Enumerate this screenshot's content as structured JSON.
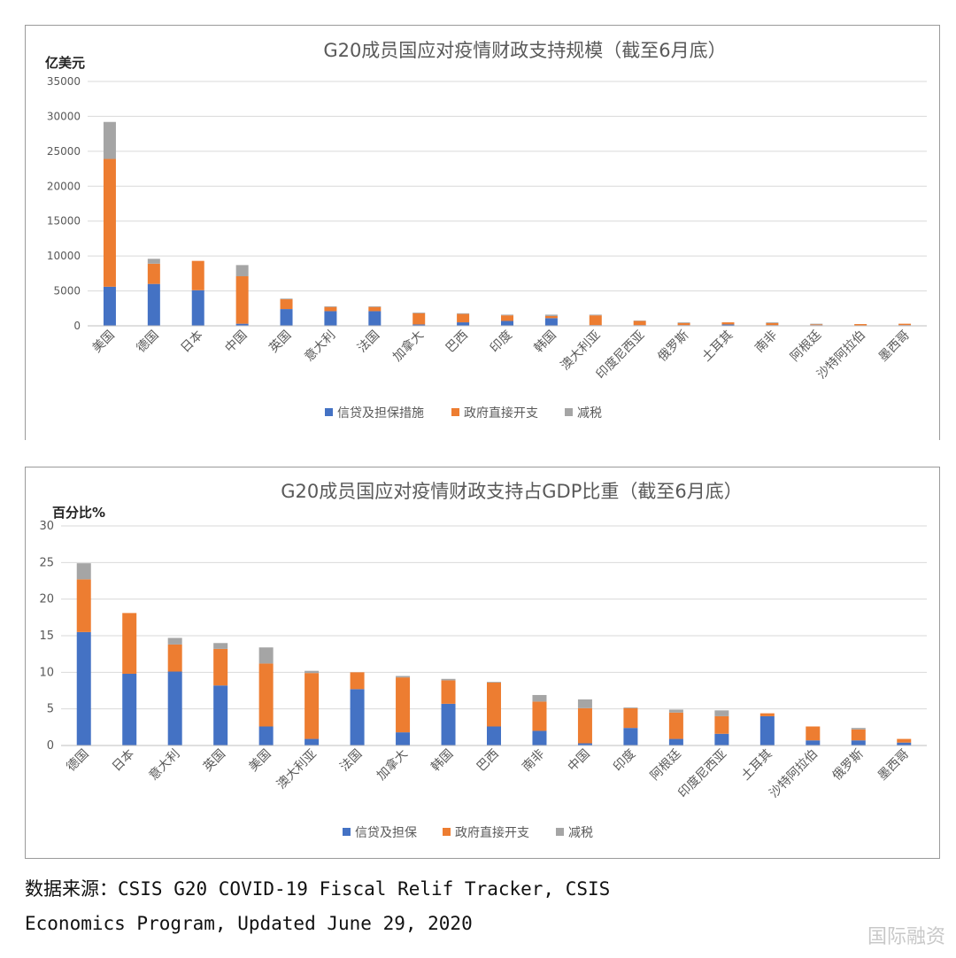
{
  "charts": [
    {
      "type": "bar",
      "stacked": true,
      "title": "G20成员国应对疫情财政支持规模（截至6月底）",
      "ylabel": "亿美元",
      "ylim": [
        0,
        35000
      ],
      "yticks": [
        0,
        5000,
        10000,
        15000,
        20000,
        25000,
        30000,
        35000
      ],
      "grid": true,
      "legend_position": "bottom",
      "categories": [
        "美国",
        "德国",
        "日本",
        "中国",
        "英国",
        "意大利",
        "法国",
        "加拿大",
        "巴西",
        "印度",
        "韩国",
        "澳大利亚",
        "印度尼西亚",
        "俄罗斯",
        "土耳其",
        "南非",
        "阿根廷",
        "沙特阿拉伯",
        "墨西哥"
      ],
      "series": [
        {
          "name": "信贷及担保措施",
          "color": "#4472C4",
          "values": [
            5600,
            6000,
            5100,
            300,
            2400,
            2100,
            2100,
            200,
            500,
            700,
            1100,
            100,
            100,
            100,
            200,
            100,
            100,
            50,
            100
          ]
        },
        {
          "name": "政府直接开支",
          "color": "#ED7D31",
          "values": [
            18300,
            2900,
            4200,
            6800,
            1400,
            600,
            600,
            1600,
            1200,
            800,
            300,
            1400,
            600,
            300,
            300,
            300,
            100,
            200,
            200
          ]
        },
        {
          "name": "减税",
          "color": "#A5A5A5",
          "values": [
            5300,
            700,
            0,
            1600,
            100,
            100,
            100,
            100,
            100,
            100,
            200,
            100,
            50,
            100,
            0,
            100,
            100,
            0,
            0
          ]
        }
      ]
    },
    {
      "type": "bar",
      "stacked": true,
      "title": "G20成员国应对疫情财政支持占GDP比重（截至6月底）",
      "ylabel": "百分比%",
      "ylim": [
        0,
        30
      ],
      "yticks": [
        0,
        5,
        10,
        15,
        20,
        25,
        30
      ],
      "grid": true,
      "legend_position": "bottom",
      "categories": [
        "德国",
        "日本",
        "意大利",
        "英国",
        "美国",
        "澳大利亚",
        "法国",
        "加拿大",
        "韩国",
        "巴西",
        "南非",
        "中国",
        "印度",
        "阿根廷",
        "印度尼西亚",
        "土耳其",
        "沙特阿拉伯",
        "俄罗斯",
        "墨西哥"
      ],
      "series": [
        {
          "name": "信贷及担保",
          "color": "#4472C4",
          "values": [
            15.5,
            9.8,
            10.1,
            8.2,
            2.6,
            0.9,
            7.7,
            1.8,
            5.7,
            2.6,
            2.0,
            0.3,
            2.4,
            0.9,
            1.6,
            4.0,
            0.7,
            0.7,
            0.4
          ]
        },
        {
          "name": "政府直接开支",
          "color": "#ED7D31",
          "values": [
            7.2,
            8.3,
            3.7,
            5.0,
            8.6,
            9.0,
            2.3,
            7.5,
            3.2,
            6.0,
            4.0,
            4.8,
            2.7,
            3.6,
            2.4,
            0.4,
            1.9,
            1.5,
            0.5
          ]
        },
        {
          "name": "减税",
          "color": "#A5A5A5",
          "values": [
            2.2,
            0,
            0.9,
            0.8,
            2.2,
            0.3,
            0,
            0.2,
            0.2,
            0.1,
            0.9,
            1.2,
            0.1,
            0.4,
            0.8,
            0,
            0,
            0.2,
            0
          ]
        }
      ]
    }
  ],
  "source_line1": "数据来源：CSIS G20 COVID-19 Fiscal Relif Tracker, CSIS",
  "source_line2": "Economics Program, Updated June 29, 2020",
  "watermark": "国际融资"
}
